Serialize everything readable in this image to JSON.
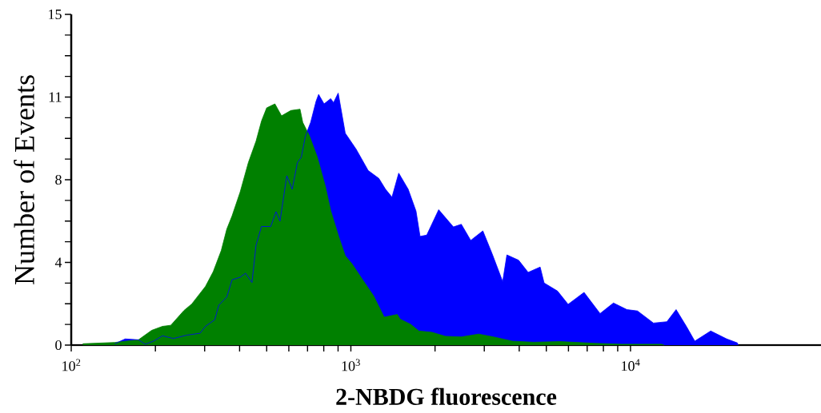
{
  "chart_data": {
    "type": "area",
    "xlabel": "2-NBDG fluorescence",
    "ylabel": "Number of Events",
    "log": "x",
    "xlim": [
      100,
      48000
    ],
    "ylim": [
      0,
      15
    ],
    "xticks": [
      {
        "value": 100,
        "label": "10$^{2}$"
      },
      {
        "value": 200,
        "label": null
      },
      {
        "value": 300,
        "label": null
      },
      {
        "value": 400,
        "label": null
      },
      {
        "value": 500,
        "label": null
      },
      {
        "value": 600,
        "label": null
      },
      {
        "value": 700,
        "label": null
      },
      {
        "value": 800,
        "label": null
      },
      {
        "value": 900,
        "label": null
      },
      {
        "value": 1000,
        "label": "10$^{3}$"
      },
      {
        "value": 2000,
        "label": null
      },
      {
        "value": 3000,
        "label": null
      },
      {
        "value": 4000,
        "label": null
      },
      {
        "value": 5000,
        "label": null
      },
      {
        "value": 6000,
        "label": null
      },
      {
        "value": 7000,
        "label": null
      },
      {
        "value": 8000,
        "label": null
      },
      {
        "value": 9000,
        "label": null
      },
      {
        "value": 10000,
        "label": "10$^{4}$"
      }
    ],
    "yticks": [
      0,
      {
        "value": 0.9375,
        "label": null
      },
      {
        "value": 1.875,
        "label": null
      },
      {
        "value": 2.8125,
        "label": null
      },
      {
        "value": 3.75,
        "label": "4"
      },
      {
        "value": 4.6875,
        "label": null
      },
      {
        "value": 5.625,
        "label": null
      },
      {
        "value": 6.5625,
        "label": null
      },
      {
        "value": 7.5,
        "label": "8"
      },
      {
        "value": 8.4375,
        "label": null
      },
      {
        "value": 9.375,
        "label": null
      },
      {
        "value": 10.3125,
        "label": null
      },
      {
        "value": 11.25,
        "label": "11"
      },
      {
        "value": 12.1875,
        "label": null
      },
      {
        "value": 13.125,
        "label": null
      },
      {
        "value": 14.0625,
        "label": null
      },
      15
    ],
    "series": [
      {
        "color": "#0000ff",
        "x": [
          143,
          156,
          174,
          184,
          197,
          212,
          232,
          259,
          289,
          302,
          326,
          337,
          360,
          376,
          402,
          420,
          443,
          458,
          479,
          517,
          540,
          558,
          590,
          617,
          644,
          665,
          688,
          718,
          751,
          767,
          802,
          847,
          867,
          901,
          955,
          1044,
          1153,
          1259,
          1330,
          1403,
          1483,
          1603,
          1710,
          1768,
          1868,
          2061,
          2326,
          2483,
          2683,
          2965,
          3199,
          3491,
          3614,
          3981,
          4305,
          4753,
          4910,
          5483,
          5984,
          6823,
          7785,
          8690,
          9705,
          10590,
          12080,
          13490,
          14560,
          15890,
          16980,
          19360,
          22080,
          24100,
          24270
        ],
        "values": [
          0.06,
          0.28,
          0.24,
          0.04,
          0.18,
          0.42,
          0.3,
          0.45,
          0.54,
          0.85,
          1.15,
          1.81,
          2.18,
          2.96,
          3.08,
          3.26,
          2.84,
          4.53,
          5.38,
          5.38,
          6.05,
          5.62,
          7.68,
          7.07,
          8.28,
          8.52,
          9.49,
          10.1,
          11.06,
          11.37,
          10.94,
          11.18,
          11.0,
          11.43,
          9.61,
          8.89,
          7.92,
          7.56,
          7.07,
          6.71,
          7.8,
          7.07,
          6.08,
          4.93,
          4.99,
          6.14,
          5.36,
          5.48,
          4.75,
          5.18,
          4.15,
          2.88,
          4.09,
          3.85,
          3.3,
          3.54,
          2.82,
          2.45,
          1.85,
          2.39,
          1.43,
          1.91,
          1.61,
          1.55,
          1.0,
          1.06,
          1.61,
          0.82,
          0.18,
          0.64,
          0.28,
          0.1,
          0
        ]
      },
      {
        "color": "#008000",
        "x": [
          110,
          143,
          174,
          194,
          212,
          227,
          253,
          270,
          302,
          322,
          344,
          360,
          376,
          402,
          430,
          458,
          479,
          500,
          535,
          565,
          610,
          658,
          673,
          711,
          759,
          811,
          847,
          906,
          955,
          1009,
          1102,
          1205,
          1315,
          1466,
          1500,
          1637,
          1750,
          1950,
          2178,
          2483,
          2864,
          3236,
          3776,
          4498,
          5598,
          7447,
          9290,
          12910,
          13180
        ],
        "values": [
          0.06,
          0.12,
          0.24,
          0.67,
          0.85,
          0.9,
          1.57,
          1.87,
          2.66,
          3.33,
          4.29,
          5.26,
          5.86,
          6.95,
          8.28,
          9.25,
          10.16,
          10.76,
          10.94,
          10.4,
          10.64,
          10.7,
          10.1,
          9.49,
          8.52,
          7.19,
          6.1,
          4.9,
          4.05,
          3.69,
          2.96,
          2.24,
          1.27,
          1.39,
          1.18,
          0.94,
          0.64,
          0.58,
          0.4,
          0.37,
          0.5,
          0.37,
          0.18,
          0.13,
          0.16,
          0.08,
          0.04,
          0.04,
          0
        ]
      }
    ]
  }
}
